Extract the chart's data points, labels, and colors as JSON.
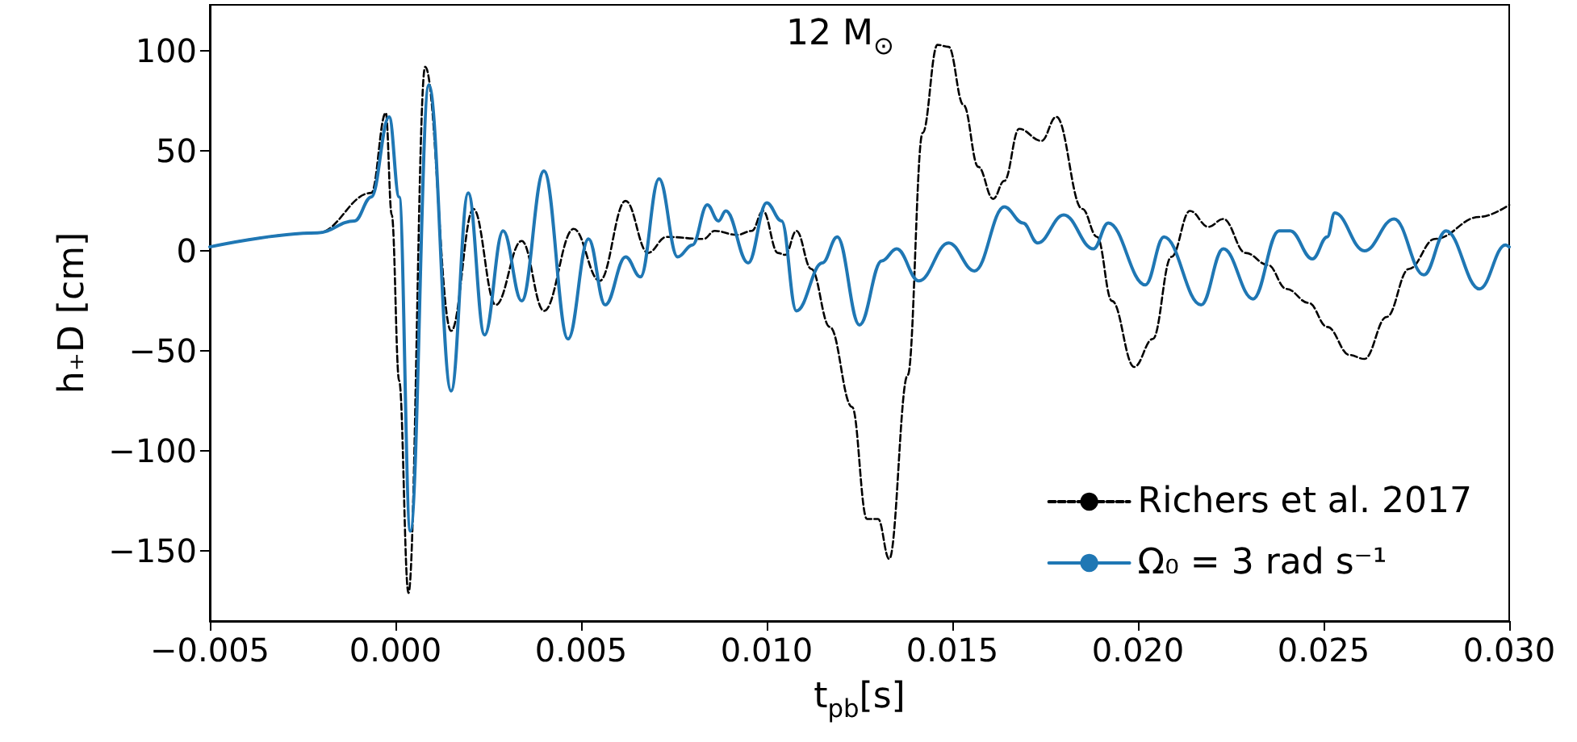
{
  "chart_data": {
    "type": "line",
    "xlabel": "t$_{pb}$[s]",
    "ylabel": "h₊D [cm]",
    "annotations": [
      "12 M$_{⊙}$"
    ],
    "xlim": [
      -0.005,
      0.03
    ],
    "xticks": [
      {
        "value": -0.005,
        "label": "−0.005"
      },
      {
        "value": 0,
        "label": "0.000"
      },
      {
        "value": 0.005,
        "label": "0.005"
      },
      {
        "value": 0.01,
        "label": "0.010"
      },
      {
        "value": 0.015,
        "label": "0.015"
      },
      {
        "value": 0.02,
        "label": "0.020"
      },
      {
        "value": 0.025,
        "label": "0.025"
      },
      {
        "value": 0.03,
        "label": "0.030"
      }
    ],
    "ylim": [
      -185,
      123
    ],
    "yticks": [
      -150,
      -100,
      -50,
      0,
      50,
      100
    ],
    "grid": false,
    "legend": "bottom right",
    "marker": "none",
    "series": [
      {
        "name": "Richers et al. 2017",
        "color": "#000000",
        "line_style": "dashed",
        "x": [
          -0.005,
          -0.0021,
          -0.00065,
          -0.00026,
          -0.0001,
          0.0001,
          0.00035,
          0.0008,
          0.0015,
          0.0021,
          0.0027,
          0.0034,
          0.004,
          0.0048,
          0.0055,
          0.0062,
          0.0068,
          0.0073,
          0.0083,
          0.0086,
          0.0092,
          0.0096,
          0.0099,
          0.0103,
          0.0105,
          0.0108,
          0.0112,
          0.0117,
          0.0123,
          0.0127,
          0.013,
          0.0133,
          0.0138,
          0.0142,
          0.0146,
          0.0149,
          0.0153,
          0.0157,
          0.0161,
          0.0164,
          0.0168,
          0.0174,
          0.0178,
          0.0185,
          0.0189,
          0.0193,
          0.0199,
          0.0204,
          0.0209,
          0.0214,
          0.0219,
          0.0223,
          0.0229,
          0.0235,
          0.024,
          0.0246,
          0.0251,
          0.0257,
          0.0261,
          0.0267,
          0.0273,
          0.028,
          0.0292,
          0.03
        ],
        "values": [
          2,
          9,
          29,
          69,
          18,
          -65,
          -171,
          92,
          -40,
          21,
          -27,
          5,
          -30,
          11,
          -15,
          25,
          -1,
          7,
          6,
          10,
          8,
          10,
          20,
          -1,
          -2,
          10,
          -9,
          -38,
          -78,
          -134,
          -134,
          -154,
          -62,
          59,
          103,
          102,
          73,
          42,
          26,
          35,
          61,
          55,
          67,
          21,
          7,
          -25,
          -58,
          -44,
          -3,
          20,
          12,
          16,
          -1,
          -7,
          -19,
          -26,
          -38,
          -52,
          -54,
          -33,
          -9,
          6,
          17,
          23
        ]
      },
      {
        "name": "Ω₀ = 3 rad s⁻¹",
        "color": "#1f77b4",
        "line_style": "solid",
        "x": [
          -0.005,
          -0.0021,
          -0.0011,
          -0.00065,
          -0.00017,
          0.0001,
          0.0004,
          0.0009,
          0.0015,
          0.00196,
          0.0024,
          0.0029,
          0.0034,
          0.004,
          0.00465,
          0.0052,
          0.00565,
          0.0062,
          0.0066,
          0.0071,
          0.0076,
          0.008,
          0.0084,
          0.0087,
          0.0089,
          0.0095,
          0.01,
          0.0104,
          0.0108,
          0.0115,
          0.0119,
          0.0125,
          0.0131,
          0.0135,
          0.0141,
          0.0149,
          0.0156,
          0.0164,
          0.0169,
          0.0173,
          0.018,
          0.0188,
          0.0192,
          0.0202,
          0.0207,
          0.0217,
          0.0223,
          0.0231,
          0.0238,
          0.0241,
          0.0247,
          0.0251,
          0.0253,
          0.0261,
          0.0269,
          0.0277,
          0.0283,
          0.0292,
          0.0299,
          0.03
        ],
        "values": [
          2,
          9,
          15,
          27,
          67,
          27,
          -140,
          83,
          -70,
          29,
          -42,
          10,
          -25,
          40,
          -44,
          6,
          -27,
          -3,
          -13,
          36,
          -3,
          3,
          23,
          15,
          20,
          -6,
          24,
          15,
          -30,
          -6,
          7,
          -37,
          -5,
          1,
          -15,
          4,
          -10,
          22,
          14,
          4,
          18,
          1,
          14,
          -17,
          7,
          -27,
          1,
          -24,
          10,
          10,
          -4,
          7,
          19,
          0,
          16,
          -12,
          10,
          -19,
          3,
          2
        ]
      }
    ]
  }
}
